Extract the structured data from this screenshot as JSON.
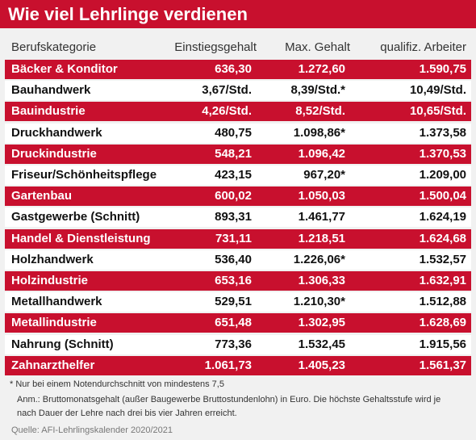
{
  "header": {
    "title": "Wie viel Lehrlinge verdienen"
  },
  "table": {
    "columns": [
      "Berufskategorie",
      "Einstiegsgehalt",
      "Max. Gehalt",
      "qualifiz. Arbeiter"
    ],
    "rows": [
      [
        "Bäcker & Konditor",
        "636,30",
        "1.272,60",
        "1.590,75"
      ],
      [
        "Bauhandwerk",
        "3,67/Std.",
        "8,39/Std.*",
        "10,49/Std."
      ],
      [
        "Bauindustrie",
        "4,26/Std.",
        "8,52/Std.",
        "10,65/Std."
      ],
      [
        "Druckhandwerk",
        "480,75",
        "1.098,86*",
        "1.373,58"
      ],
      [
        "Druckindustrie",
        "548,21",
        "1.096,42",
        "1.370,53"
      ],
      [
        "Friseur/Schönheitspflege",
        "423,15",
        "967,20*",
        "1.209,00"
      ],
      [
        "Gartenbau",
        "600,02",
        "1.050,03",
        "1.500,04"
      ],
      [
        "Gastgewerbe (Schnitt)",
        "893,31",
        "1.461,77",
        "1.624,19"
      ],
      [
        "Handel & Dienstleistung",
        "731,11",
        "1.218,51",
        "1.624,68"
      ],
      [
        "Holzhandwerk",
        "536,40",
        "1.226,06*",
        "1.532,57"
      ],
      [
        "Holzindustrie",
        "653,16",
        "1.306,33",
        "1.632,91"
      ],
      [
        "Metallhandwerk",
        "529,51",
        "1.210,30*",
        "1.512,88"
      ],
      [
        "Metallindustrie",
        "651,48",
        "1.302,95",
        "1.628,69"
      ],
      [
        "Nahrung (Schnitt)",
        "773,36",
        "1.532,45",
        "1.915,56"
      ],
      [
        "Zahnarzthelfer",
        "1.061,73",
        "1.405,23",
        "1.561,37"
      ]
    ]
  },
  "footer": {
    "footnote": "* Nur bei einem Notendurchschnitt von mindestens 7,5",
    "note": "Anm.: Bruttomonatsgehalt (außer Baugewerbe Bruttostundenlohn) in Euro. Die höchste Gehaltsstufe wird je nach Dauer der Lehre nach drei bis vier Jahren erreicht.",
    "source": "Quelle: AFI-Lehrlingskalender 2020/2021"
  }
}
